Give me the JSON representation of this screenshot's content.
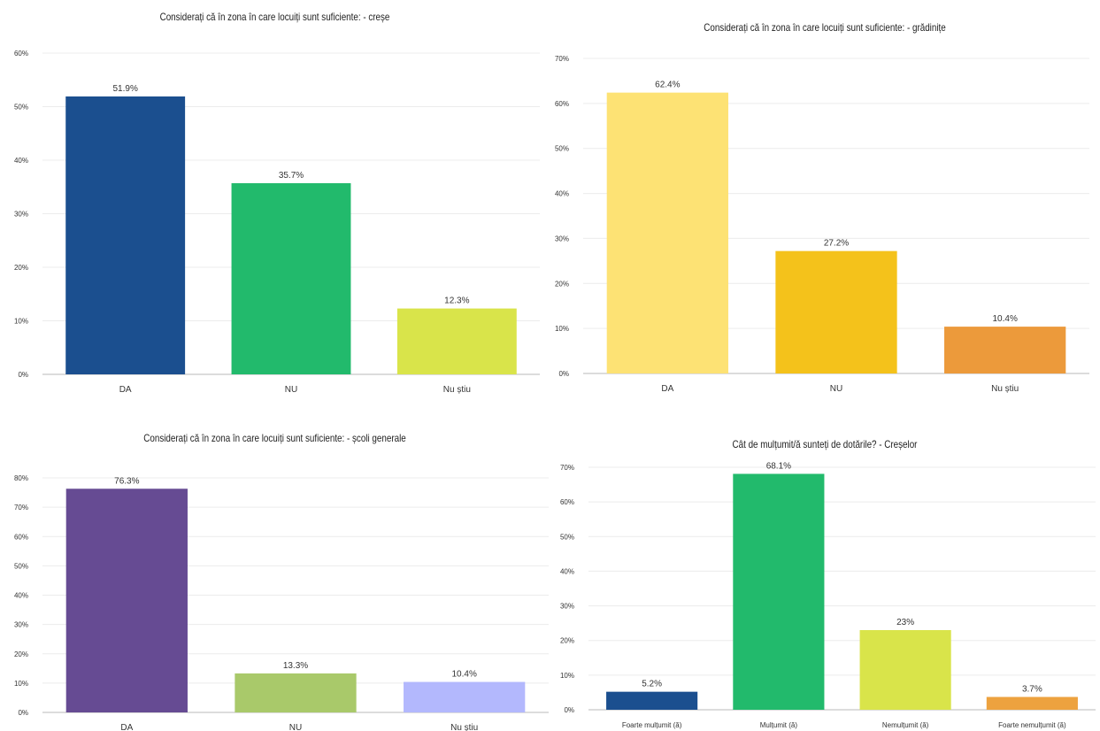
{
  "chart_data": [
    {
      "type": "bar",
      "title": "Considerați că în zona în care locuiți sunt suficiente: - creșe",
      "categories": [
        "DA",
        "NU",
        "Nu știu"
      ],
      "values": [
        51.9,
        35.7,
        12.3
      ],
      "value_labels": [
        "51.9%",
        "35.7%",
        "12.3%"
      ],
      "colors": [
        "#1b4f8f",
        "#22ba6c",
        "#d9e44a"
      ],
      "ylim": [
        0,
        60
      ],
      "yticks": [
        0,
        10,
        20,
        30,
        40,
        50,
        60
      ],
      "ytick_labels": [
        "0%",
        "10%",
        "20%",
        "30%",
        "40%",
        "50%",
        "60%"
      ],
      "grid": true
    },
    {
      "type": "bar",
      "title": "Considerați că în zona în care locuiți sunt suficiente: - grădinițe",
      "categories": [
        "DA",
        "NU",
        "Nu știu"
      ],
      "values": [
        62.4,
        27.2,
        10.4
      ],
      "value_labels": [
        "62.4%",
        "27.2%",
        "10.4%"
      ],
      "colors": [
        "#fde274",
        "#f4c21b",
        "#ec9a3b"
      ],
      "ylim": [
        0,
        70
      ],
      "yticks": [
        0,
        10,
        20,
        30,
        40,
        50,
        60,
        70
      ],
      "ytick_labels": [
        "0%",
        "10%",
        "20%",
        "30%",
        "40%",
        "50%",
        "60%",
        "70%"
      ],
      "grid": true
    },
    {
      "type": "bar",
      "title": "Considerați că în zona în care locuiți sunt suficiente: - școli generale",
      "categories": [
        "DA",
        "NU",
        "Nu știu"
      ],
      "values": [
        76.3,
        13.3,
        10.4
      ],
      "value_labels": [
        "76.3%",
        "13.3%",
        "10.4%"
      ],
      "colors": [
        "#664b93",
        "#a9c96a",
        "#b3b8fd"
      ],
      "ylim": [
        0,
        80
      ],
      "yticks": [
        0,
        10,
        20,
        30,
        40,
        50,
        60,
        70,
        80
      ],
      "ytick_labels": [
        "0%",
        "10%",
        "20%",
        "30%",
        "40%",
        "50%",
        "60%",
        "70%",
        "80%"
      ],
      "grid": true
    },
    {
      "type": "bar",
      "title": "Cât de mulțumit/ă sunteți de dotările? - Creșelor",
      "categories": [
        "Foarte mulțumit (ă)",
        "Mulțumit (ă)",
        "Nemulțumit (ă)",
        "Foarte nemulțumit (ă)"
      ],
      "values": [
        5.2,
        68.1,
        23,
        3.7
      ],
      "value_labels": [
        "5.2%",
        "68.1%",
        "23%",
        "3.7%"
      ],
      "colors": [
        "#1b4f8f",
        "#22ba6c",
        "#d9e44a",
        "#eda23f"
      ],
      "ylim": [
        0,
        70
      ],
      "yticks": [
        0,
        10,
        20,
        30,
        40,
        50,
        60,
        70
      ],
      "ytick_labels": [
        "0%",
        "10%",
        "20%",
        "30%",
        "40%",
        "50%",
        "60%",
        "70%"
      ],
      "grid": true
    }
  ]
}
